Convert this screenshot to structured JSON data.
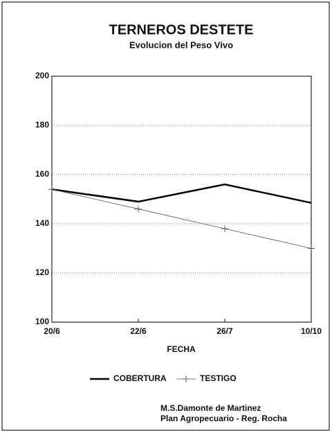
{
  "chart_data": {
    "type": "line",
    "title": "TERNEROS DESTETE",
    "subtitle": "Evolucion del Peso Vivo",
    "x_label": "FECHA",
    "categories": [
      "20/6",
      "22/6",
      "26/7",
      "10/10"
    ],
    "series": [
      {
        "name": "COBERTURA",
        "color": "#000000",
        "values": [
          154,
          149,
          156,
          148.5
        ]
      },
      {
        "name": "TESTIGO",
        "color": "#555555",
        "values": [
          154,
          146,
          138,
          130
        ]
      }
    ],
    "ylim": [
      100,
      200
    ],
    "yticks": [
      100,
      120,
      140,
      160,
      180,
      200
    ],
    "grid": true,
    "annotations": [
      "M.S.Damonte de Martinez",
      "Plan Agropecuario - Reg. Rocha"
    ]
  }
}
